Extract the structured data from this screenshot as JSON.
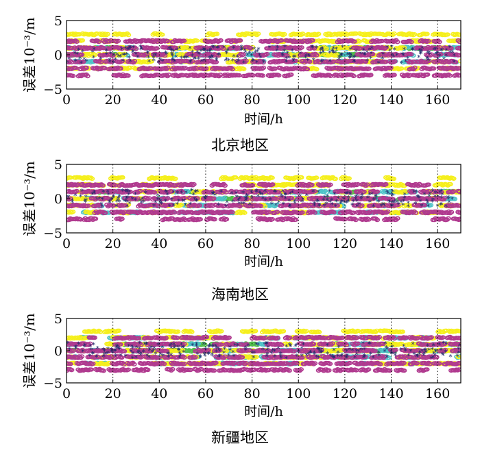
{
  "colors": {
    "magenta": "#b03a8f",
    "yellow": "#f5ef1c",
    "cyan": "#4fc3c8",
    "green": "#4fbf4a",
    "navy": "#1e2a6b",
    "axis": "#000000"
  },
  "chart_data": [
    {
      "type": "scatter",
      "title": "北京地区",
      "xlabel": "时间/h",
      "ylabel": "误差10⁻³/m",
      "xlim": [
        0,
        170
      ],
      "ylim": [
        -5,
        5
      ],
      "xticks": [
        0,
        20,
        40,
        60,
        80,
        100,
        120,
        140,
        160
      ],
      "yticks": [
        -5,
        0,
        5
      ],
      "grid": "vertical-dotted",
      "series": [
        {
          "name": "magenta",
          "marker": "o",
          "values_summary": "dense bands at -2, -1, 0, 1, 2 across 0-170 h",
          "y_levels": [
            -3,
            -2,
            -1,
            0,
            1,
            2
          ]
        },
        {
          "name": "yellow",
          "marker": "o",
          "values_summary": "bands at -2..3",
          "y_levels": [
            -2,
            -1,
            0,
            1,
            2,
            3
          ]
        },
        {
          "name": "cyan",
          "marker": "o",
          "values_summary": "bands at -1..1",
          "y_levels": [
            -1,
            0,
            1
          ]
        },
        {
          "name": "green",
          "marker": "o",
          "values_summary": "bands near 0..1",
          "y_levels": [
            0,
            1
          ]
        },
        {
          "name": "navy",
          "marker": "*",
          "values_summary": "scattered near -1..1",
          "y_levels": [
            -1,
            0,
            1
          ]
        }
      ]
    },
    {
      "type": "scatter",
      "title": "海南地区",
      "xlabel": "时间/h",
      "ylabel": "误差10⁻³/m",
      "xlim": [
        0,
        170
      ],
      "ylim": [
        -5,
        5
      ],
      "xticks": [
        0,
        20,
        40,
        60,
        80,
        100,
        120,
        140,
        160
      ],
      "yticks": [
        -5,
        0,
        5
      ],
      "grid": "vertical-dotted",
      "series": [
        {
          "name": "magenta",
          "marker": "o",
          "y_levels": [
            -3,
            -2,
            -1,
            0,
            1,
            2
          ]
        },
        {
          "name": "yellow",
          "marker": "o",
          "y_levels": [
            -2,
            -1,
            0,
            1,
            2,
            3
          ]
        },
        {
          "name": "cyan",
          "marker": "o",
          "y_levels": [
            -2,
            -1,
            0,
            1
          ]
        },
        {
          "name": "green",
          "marker": "o",
          "y_levels": [
            0,
            1
          ]
        },
        {
          "name": "navy",
          "marker": "*",
          "y_levels": [
            -2,
            -1,
            0,
            1
          ]
        }
      ]
    },
    {
      "type": "scatter",
      "title": "新疆地区",
      "xlabel": "时间/h",
      "ylabel": "误差10⁻³/m",
      "xlim": [
        0,
        170
      ],
      "ylim": [
        -5,
        5
      ],
      "xticks": [
        0,
        20,
        40,
        60,
        80,
        100,
        120,
        140,
        160
      ],
      "yticks": [
        -5,
        0,
        5
      ],
      "grid": "vertical-dotted",
      "series": [
        {
          "name": "magenta",
          "marker": "o",
          "y_levels": [
            -3,
            -2,
            -1,
            0,
            1,
            2
          ]
        },
        {
          "name": "yellow",
          "marker": "o",
          "y_levels": [
            -2,
            -1,
            0,
            1,
            2,
            3
          ]
        },
        {
          "name": "cyan",
          "marker": "o",
          "y_levels": [
            -2,
            -1,
            0,
            1,
            2
          ]
        },
        {
          "name": "green",
          "marker": "o",
          "y_levels": [
            0,
            1
          ]
        },
        {
          "name": "navy",
          "marker": "*",
          "y_levels": [
            -1,
            0,
            1
          ]
        }
      ]
    }
  ]
}
